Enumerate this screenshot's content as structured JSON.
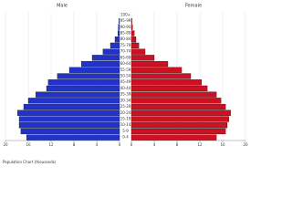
{
  "chart_data": {
    "type": "pyramid",
    "x_label": "Population Chart (thousands)",
    "categories": [
      "0-4",
      "5-9",
      "10-14",
      "15-19",
      "20-24",
      "25-29",
      "30-34",
      "35-39",
      "40-44",
      "45-49",
      "50-54",
      "55-59",
      "60-64",
      "65-69",
      "70-74",
      "75-79",
      "80-84",
      "85-89",
      "90-94",
      "95-99",
      "100+"
    ],
    "series": [
      {
        "name": "Male",
        "color": "#2233cc",
        "values": [
          16.3,
          17.3,
          17.6,
          17.6,
          17.9,
          16.8,
          16,
          14.7,
          12.8,
          12.5,
          10.9,
          8.8,
          6.7,
          4.8,
          2.9,
          1.6,
          0.8,
          0.3,
          0.2,
          0.1,
          0
        ]
      },
      {
        "name": "Female",
        "color": "#cc1122",
        "values": [
          14.9,
          16.5,
          16.8,
          17.1,
          17.4,
          16.5,
          15.7,
          14.9,
          13.3,
          12.3,
          10.4,
          8.8,
          6.4,
          4,
          2.4,
          1.3,
          0.8,
          0.5,
          0.2,
          0.1,
          0
        ]
      }
    ],
    "xlim": [
      0,
      20
    ],
    "xticks": [
      0,
      4,
      8,
      12,
      16,
      20
    ],
    "grid": true
  }
}
